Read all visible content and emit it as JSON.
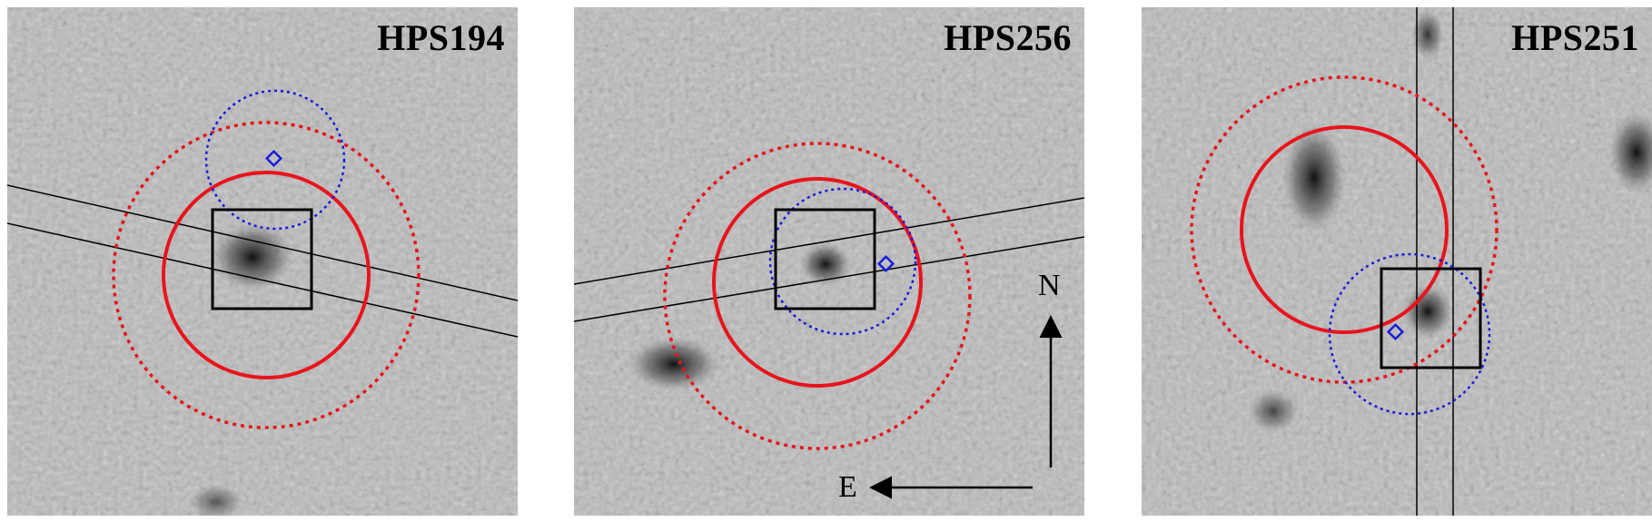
{
  "panels": [
    {
      "label": "HPS194"
    },
    {
      "label": "HPS256"
    },
    {
      "label": "HPS251"
    }
  ],
  "compass": {
    "north": "N",
    "east": "E"
  },
  "colors": {
    "solid_circle": "#e8141c",
    "dashed_circle": "#e8141c",
    "blue_circle": "#1a1adf",
    "box": "#000000",
    "background_gray": "#bdbdbd"
  }
}
